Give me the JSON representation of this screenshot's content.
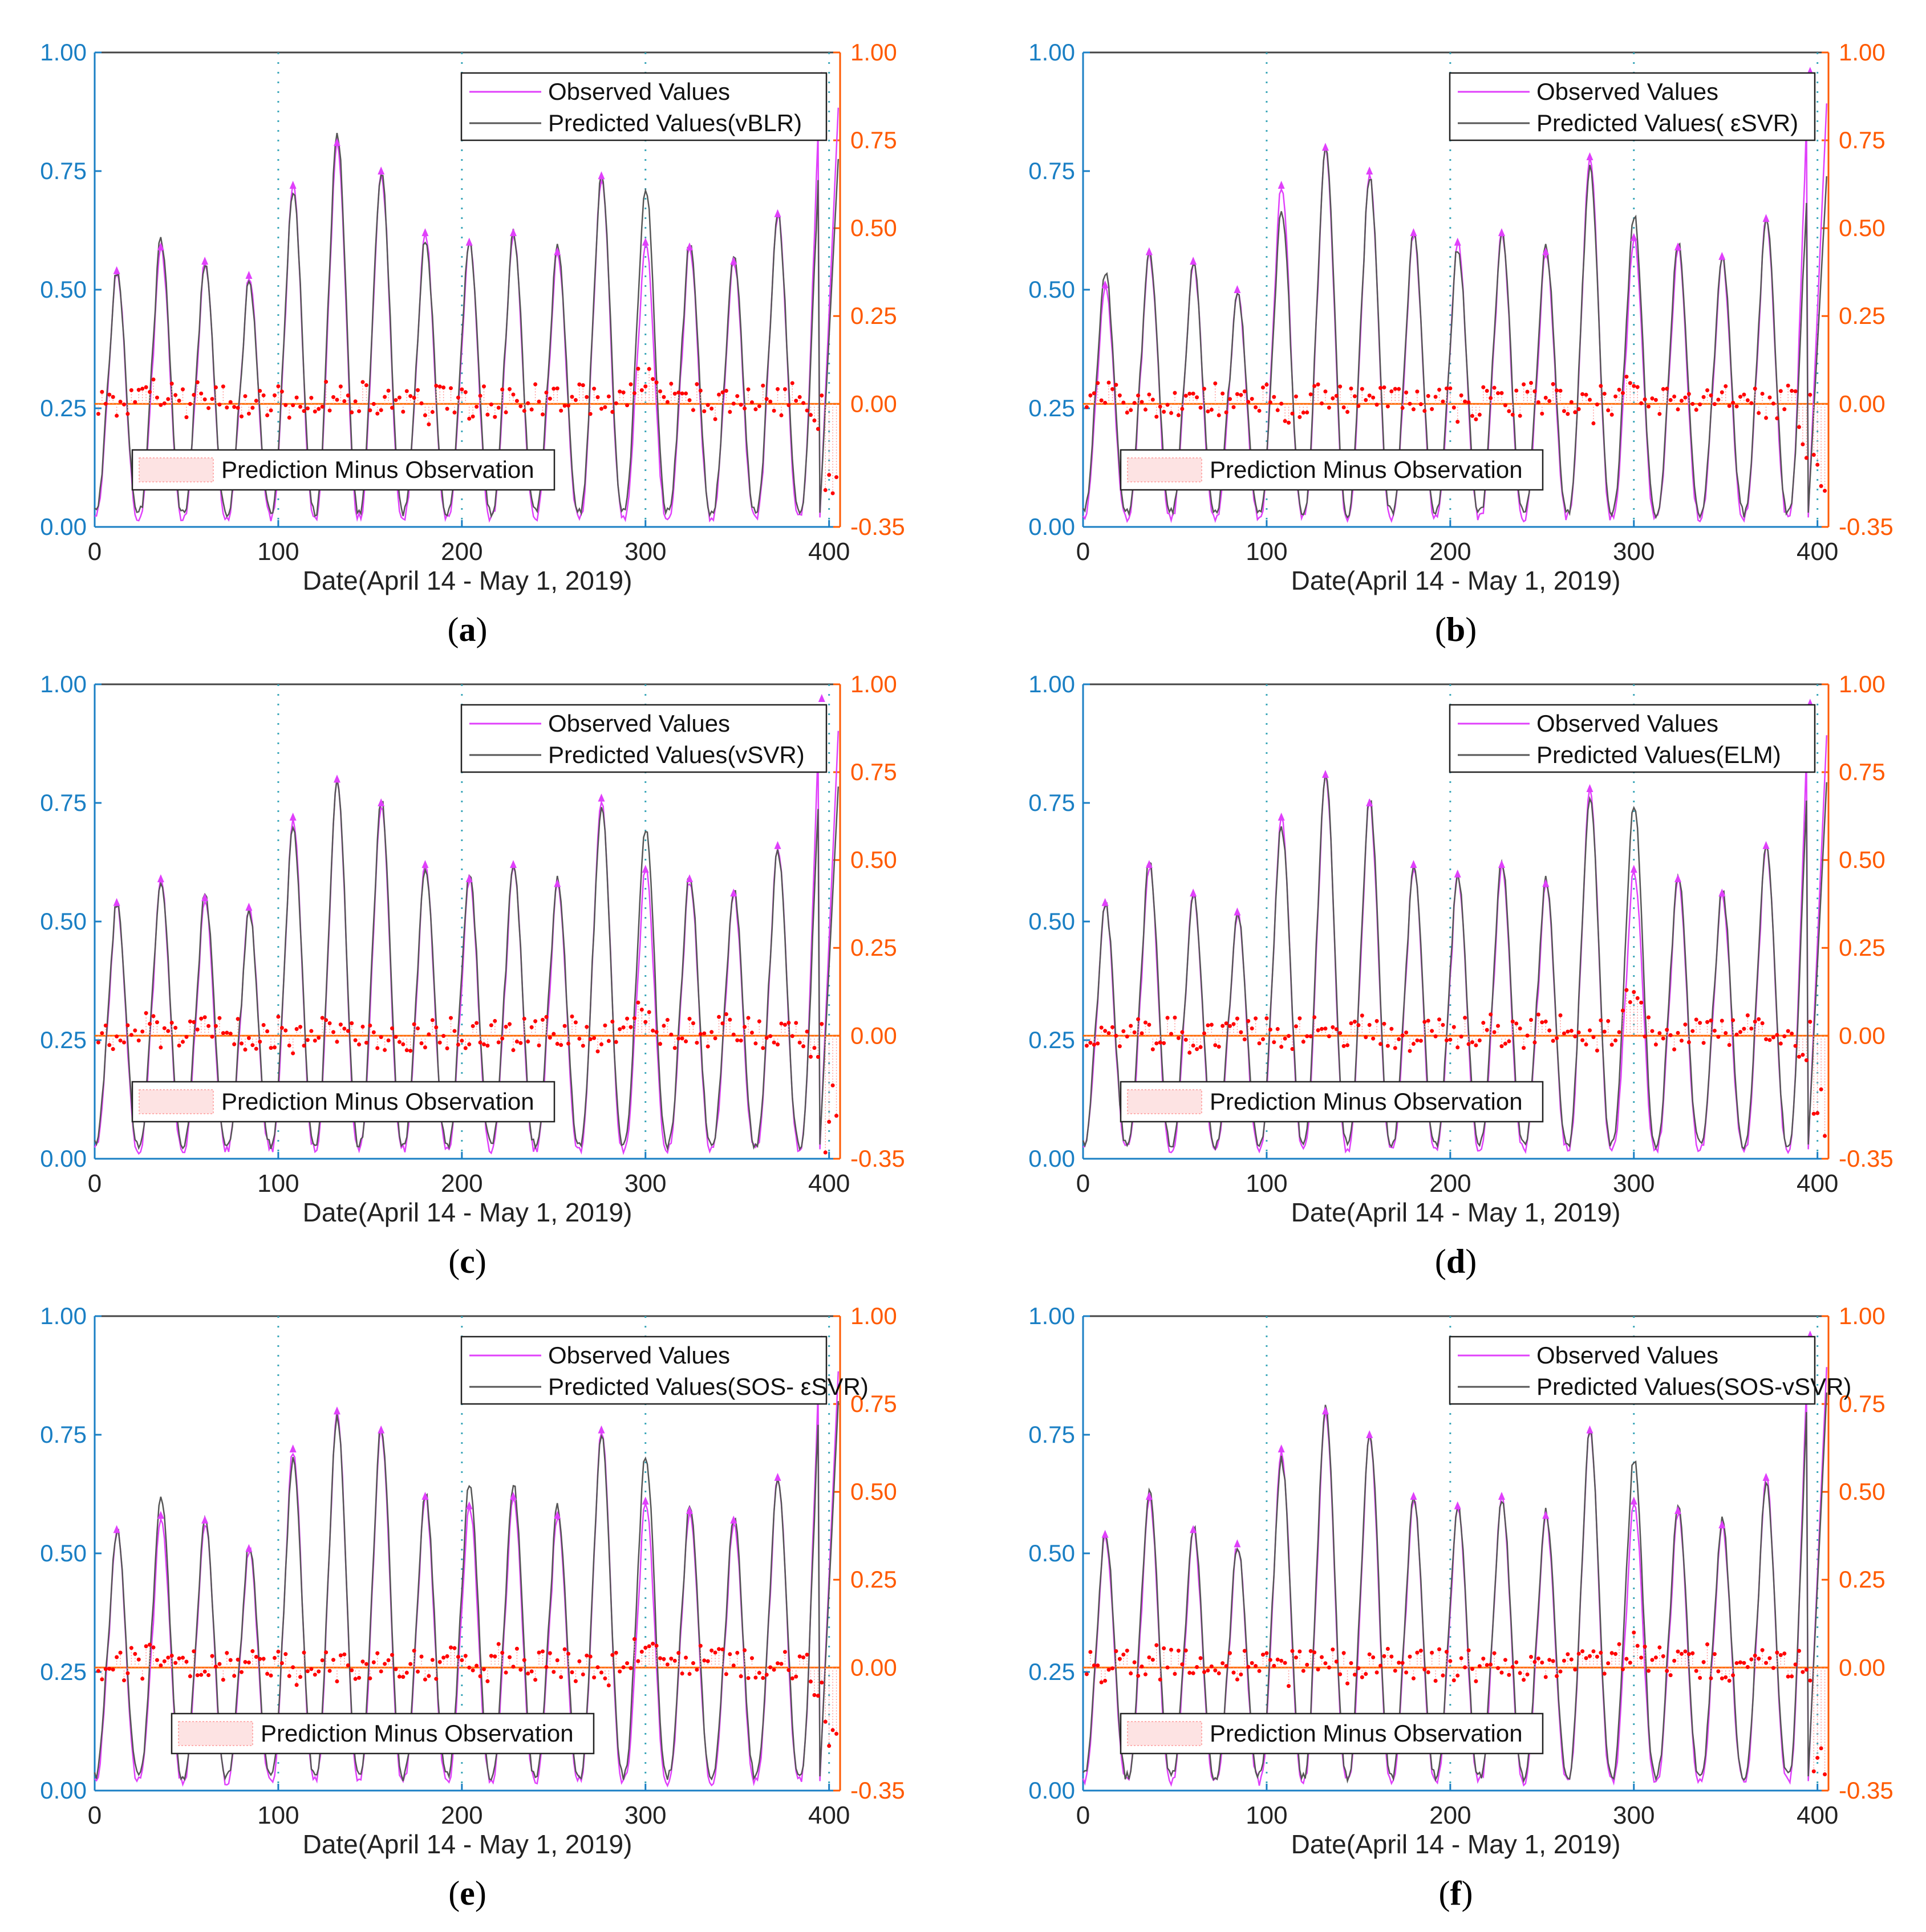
{
  "figure": {
    "x_axis_label": "Date(April 14 - May 1, 2019)",
    "left_ticks": [
      "0.00",
      "0.25",
      "0.50",
      "0.75",
      "1.00"
    ],
    "right_ticks": [
      "-0.35",
      "0.00",
      "0.25",
      "0.50",
      "0.75",
      "1.00"
    ],
    "x_ticks": [
      "0",
      "100",
      "200",
      "300",
      "400"
    ],
    "colors": {
      "left_axis": "#1a7fc4",
      "right_axis": "#ff5a00",
      "observed": "#e040fb",
      "predicted": "#555555",
      "residual": "#ff0000",
      "zero_line": "#ff6a00",
      "frame": "#1a7fc4",
      "vgrid": "#3aa6b9"
    }
  },
  "chart_data": [
    {
      "panel": "a",
      "caption": "(a)",
      "caption_letter": "a",
      "type": "line",
      "title": "",
      "xlabel": "Date(April 14 - May 1, 2019)",
      "ylabel_left": "",
      "ylabel_right": "",
      "xlim": [
        0,
        406
      ],
      "ylim_left": [
        0,
        1
      ],
      "ylim_right": [
        -0.35,
        1
      ],
      "legend_position": "top-right",
      "residual_legend_position": "bottom-left",
      "series": [
        {
          "name": "Observed Values",
          "daily_peaks": [
            0.54,
            0.59,
            0.56,
            0.53,
            0.72,
            0.81,
            0.75,
            0.62,
            0.6,
            0.62,
            0.58,
            0.74,
            0.6,
            0.59,
            0.56,
            0.66,
            0.95
          ]
        },
        {
          "name": "Predicted Values(vBLR)",
          "daily_peaks": [
            0.54,
            0.61,
            0.56,
            0.52,
            0.71,
            0.83,
            0.75,
            0.61,
            0.6,
            0.62,
            0.59,
            0.74,
            0.72,
            0.6,
            0.57,
            0.66,
            0.82
          ]
        },
        {
          "name": "Prediction Minus Observation",
          "axis": "right",
          "range": [
            -0.32,
            0.12
          ]
        }
      ],
      "residual_legend": "Prediction Minus Observation"
    },
    {
      "panel": "b",
      "caption": "(b)",
      "caption_letter": "b",
      "type": "line",
      "title": "",
      "xlabel": "Date(April 14 - May 1, 2019)",
      "ylabel_left": "",
      "ylabel_right": "",
      "xlim": [
        0,
        406
      ],
      "ylim_left": [
        0,
        1
      ],
      "ylim_right": [
        -0.35,
        1
      ],
      "legend_position": "top-right",
      "residual_legend_position": "bottom-left",
      "series": [
        {
          "name": "Observed Values",
          "daily_peaks": [
            0.51,
            0.58,
            0.56,
            0.5,
            0.72,
            0.8,
            0.75,
            0.62,
            0.6,
            0.62,
            0.58,
            0.78,
            0.61,
            0.59,
            0.57,
            0.65,
            0.96
          ]
        },
        {
          "name": "Predicted Values( εSVR)",
          "daily_peaks": [
            0.54,
            0.58,
            0.56,
            0.5,
            0.67,
            0.8,
            0.74,
            0.62,
            0.59,
            0.62,
            0.59,
            0.76,
            0.66,
            0.6,
            0.57,
            0.65,
            0.78
          ]
        },
        {
          "name": "Prediction Minus Observation",
          "axis": "right",
          "range": [
            -0.26,
            0.12
          ]
        }
      ],
      "residual_legend": "Prediction Minus Observation"
    },
    {
      "panel": "c",
      "caption": "(c)",
      "caption_letter": "c",
      "type": "line",
      "title": "",
      "xlabel": "Date(April 14 - May 1, 2019)",
      "ylabel_left": "",
      "ylabel_right": "",
      "xlim": [
        0,
        406
      ],
      "ylim_left": [
        0,
        1
      ],
      "ylim_right": [
        -0.35,
        1
      ],
      "legend_position": "top-right",
      "residual_legend_position": "bottom-left",
      "series": [
        {
          "name": "Observed Values",
          "daily_peaks": [
            0.54,
            0.59,
            0.55,
            0.53,
            0.72,
            0.8,
            0.75,
            0.62,
            0.59,
            0.62,
            0.58,
            0.76,
            0.61,
            0.59,
            0.56,
            0.66,
            0.97
          ]
        },
        {
          "name": "Predicted Values(vSVR)",
          "daily_peaks": [
            0.54,
            0.59,
            0.56,
            0.52,
            0.7,
            0.8,
            0.76,
            0.62,
            0.6,
            0.62,
            0.59,
            0.74,
            0.7,
            0.6,
            0.57,
            0.65,
            0.83
          ]
        },
        {
          "name": "Prediction Minus Observation",
          "axis": "right",
          "range": [
            -0.35,
            0.12
          ]
        }
      ],
      "residual_legend": "Prediction Minus Observation"
    },
    {
      "panel": "d",
      "caption": "(d)",
      "caption_letter": "d",
      "type": "line",
      "title": "",
      "xlabel": "Date(April 14 - May 1, 2019)",
      "ylabel_left": "",
      "ylabel_right": "",
      "xlim": [
        0,
        406
      ],
      "ylim_left": [
        0,
        1
      ],
      "ylim_right": [
        -0.35,
        1
      ],
      "legend_position": "top-right",
      "residual_legend_position": "bottom-left",
      "series": [
        {
          "name": "Observed Values",
          "daily_peaks": [
            0.54,
            0.62,
            0.56,
            0.52,
            0.72,
            0.81,
            0.75,
            0.62,
            0.6,
            0.62,
            0.58,
            0.78,
            0.61,
            0.59,
            0.56,
            0.66,
            0.96
          ]
        },
        {
          "name": "Predicted Values(ELM)",
          "daily_peaks": [
            0.54,
            0.63,
            0.56,
            0.52,
            0.7,
            0.81,
            0.76,
            0.62,
            0.6,
            0.63,
            0.59,
            0.76,
            0.75,
            0.6,
            0.57,
            0.66,
            0.84
          ]
        },
        {
          "name": "Prediction Minus Observation",
          "axis": "right",
          "range": [
            -0.3,
            0.13
          ]
        }
      ],
      "residual_legend": "Prediction Minus Observation"
    },
    {
      "panel": "e",
      "caption": "(e)",
      "caption_letter": "e",
      "type": "line",
      "title": "",
      "xlabel": "Date(April 14 - May 1, 2019)",
      "ylabel_left": "",
      "ylabel_right": "",
      "xlim": [
        0,
        406
      ],
      "ylim_left": [
        0,
        1
      ],
      "ylim_right": [
        -0.35,
        1
      ],
      "legend_position": "top-right",
      "residual_legend_position": "bottom-left",
      "series": [
        {
          "name": "Observed Values",
          "daily_peaks": [
            0.55,
            0.58,
            0.57,
            0.51,
            0.72,
            0.8,
            0.76,
            0.62,
            0.6,
            0.62,
            0.58,
            0.76,
            0.61,
            0.59,
            0.57,
            0.66,
            0.95
          ]
        },
        {
          "name": "Predicted Values(SOS- εSVR)",
          "daily_peaks": [
            0.55,
            0.62,
            0.57,
            0.52,
            0.7,
            0.79,
            0.77,
            0.63,
            0.65,
            0.65,
            0.6,
            0.75,
            0.71,
            0.6,
            0.58,
            0.66,
            0.87
          ]
        },
        {
          "name": "Prediction Minus Observation",
          "axis": "right",
          "range": [
            -0.29,
            0.15
          ]
        }
      ],
      "residual_legend": "Prediction Minus Observation"
    },
    {
      "panel": "f",
      "caption": "(f)",
      "caption_letter": "f",
      "type": "line",
      "title": "",
      "xlabel": "Date(April 14 - May 1, 2019)",
      "ylabel_left": "",
      "ylabel_right": "",
      "xlim": [
        0,
        406
      ],
      "ylim_left": [
        0,
        1
      ],
      "ylim_right": [
        -0.35,
        1
      ],
      "legend_position": "top-right",
      "residual_legend_position": "bottom-left",
      "series": [
        {
          "name": "Observed Values",
          "daily_peaks": [
            0.54,
            0.62,
            0.55,
            0.52,
            0.72,
            0.8,
            0.75,
            0.62,
            0.6,
            0.62,
            0.58,
            0.76,
            0.61,
            0.59,
            0.56,
            0.66,
            0.96
          ]
        },
        {
          "name": "Predicted Values(SOS-vSVR)",
          "daily_peaks": [
            0.55,
            0.63,
            0.56,
            0.52,
            0.7,
            0.81,
            0.76,
            0.62,
            0.6,
            0.62,
            0.59,
            0.76,
            0.7,
            0.6,
            0.57,
            0.65,
            0.89
          ]
        },
        {
          "name": "Prediction Minus Observation",
          "axis": "right",
          "range": [
            -0.32,
            0.12
          ]
        }
      ],
      "residual_legend": "Prediction Minus Observation"
    }
  ]
}
